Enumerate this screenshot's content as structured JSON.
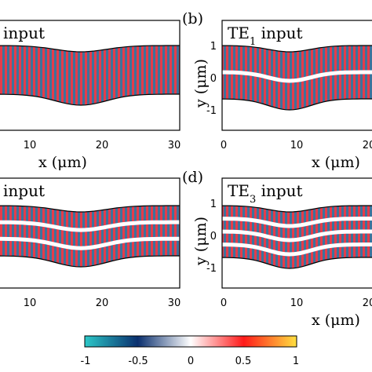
{
  "chart_data": [
    {
      "type": "heatmap",
      "panel_label": "",
      "title": "input",
      "mode_index": 0,
      "xlabel": "x (μm)",
      "ylabel": "",
      "x_ticks": [
        "10",
        "20",
        "30"
      ],
      "y_ticks": [],
      "xlim": [
        4,
        30
      ],
      "ylim": [
        -1.5,
        1.1
      ]
    },
    {
      "type": "heatmap",
      "panel_label": "(b)",
      "title_prefix": "TE",
      "title_sub": "1",
      "title_suffix": " input",
      "mode_index": 1,
      "xlabel": "x (μm)",
      "ylabel": "y (μm)",
      "x_ticks": [
        "0",
        "10",
        "20"
      ],
      "y_ticks": [
        "1",
        "0",
        "-1"
      ],
      "xlim": [
        0,
        22
      ],
      "ylim": [
        -1.5,
        1.1
      ]
    },
    {
      "type": "heatmap",
      "panel_label": "",
      "title": "input",
      "mode_index": 2,
      "xlabel": "x (μm)",
      "ylabel": "",
      "x_ticks": [
        "10",
        "20",
        "30"
      ],
      "y_ticks": [],
      "xlim": [
        4,
        30
      ],
      "ylim": [
        -1.5,
        1.1
      ]
    },
    {
      "type": "heatmap",
      "panel_label": "(d)",
      "title_prefix": "TE",
      "title_sub": "3",
      "title_suffix": " input",
      "mode_index": 3,
      "xlabel": "x (μm)",
      "ylabel": "y (μm)",
      "x_ticks": [
        "0",
        "10",
        "20"
      ],
      "y_ticks": [
        "1",
        "0",
        "-1"
      ],
      "xlim": [
        0,
        22
      ],
      "ylim": [
        -1.5,
        1.1
      ]
    }
  ],
  "colorbar": {
    "ticks": [
      "-1",
      "-0.5",
      "0",
      "0.5",
      "1"
    ],
    "range": [
      -1,
      1
    ],
    "colors": [
      "#2cc8c8",
      "#0a2f6e",
      "#ffffff",
      "#ff1a1a",
      "#ffe040"
    ]
  }
}
